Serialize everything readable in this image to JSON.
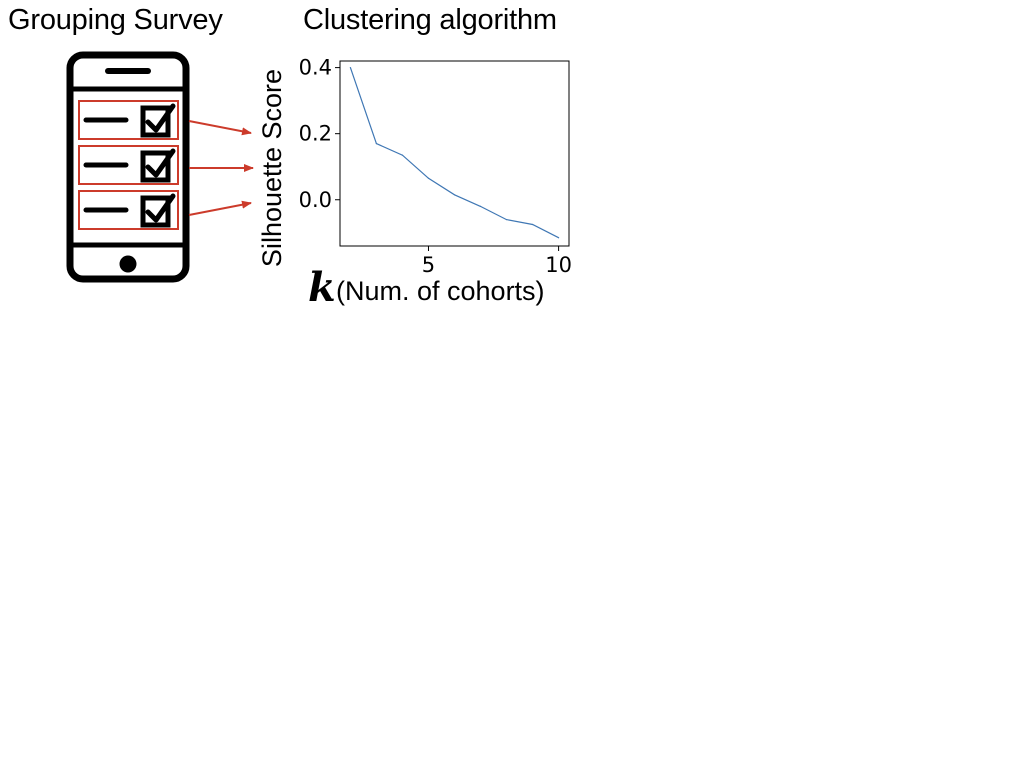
{
  "survey": {
    "title": "Grouping Survey"
  },
  "algorithm": {
    "title": "Clustering algorithm"
  },
  "icons": {
    "phone": "smartphone-icon",
    "checkbox": "checked-box-icon",
    "arrow": "arrow-right-icon"
  },
  "colors": {
    "highlight": "#cc3b2b",
    "series": "#3f77b4",
    "ink": "#000000"
  },
  "chart_data": {
    "type": "line",
    "ylabel": "Silhouette Score",
    "xlabel_symbol": "k",
    "xlabel": "(Num. of cohorts)",
    "x": [
      2,
      3,
      4,
      5,
      6,
      7,
      8,
      9,
      10
    ],
    "values": [
      0.4,
      0.17,
      0.135,
      0.065,
      0.015,
      -0.02,
      -0.06,
      -0.075,
      -0.115
    ],
    "xlim": [
      1.6,
      10.4
    ],
    "ylim": [
      -0.14,
      0.42
    ],
    "xticks": [
      5,
      10
    ],
    "xtick_labels": [
      "5",
      "10"
    ],
    "yticks": [
      0.4,
      0.2,
      0.0
    ],
    "ytick_labels": [
      "0.4",
      "0.2",
      "0.0"
    ],
    "grid": false
  }
}
